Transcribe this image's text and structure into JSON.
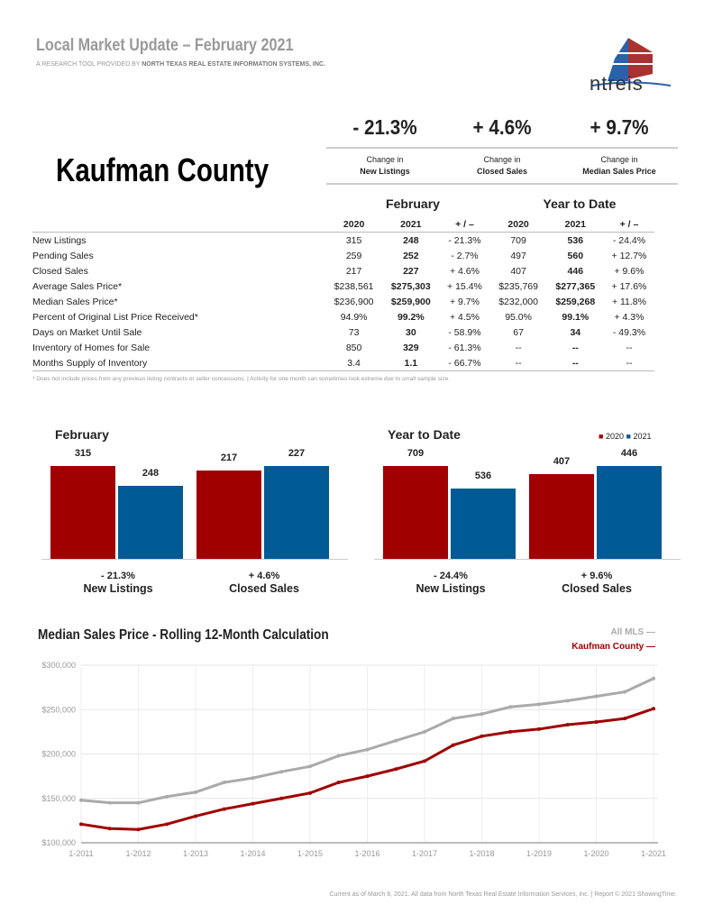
{
  "header": {
    "title": "Local Market Update – February 2021",
    "subtitle_prefix": "A RESEARCH TOOL PROVIDED BY ",
    "subtitle_org": "NORTH TEXAS REAL ESTATE INFORMATION SYSTEMS, INC.",
    "logo_text": "ntreis"
  },
  "county": "Kaufman County",
  "kpis": [
    {
      "value": "- 21.3%",
      "line1": "Change in",
      "line2": "New Listings"
    },
    {
      "value": "+ 4.6%",
      "line1": "Change in",
      "line2": "Closed Sales"
    },
    {
      "value": "+ 9.7%",
      "line1": "Change in",
      "line2": "Median Sales Price"
    }
  ],
  "table": {
    "group1": "February",
    "group2": "Year to Date",
    "cols": [
      "2020",
      "2021",
      "+ / –",
      "2020",
      "2021",
      "+ / –"
    ],
    "rows": [
      [
        "New Listings",
        "315",
        "248",
        "- 21.3%",
        "709",
        "536",
        "- 24.4%"
      ],
      [
        "Pending Sales",
        "259",
        "252",
        "- 2.7%",
        "497",
        "560",
        "+ 12.7%"
      ],
      [
        "Closed Sales",
        "217",
        "227",
        "+ 4.6%",
        "407",
        "446",
        "+ 9.6%"
      ],
      [
        "Average Sales Price*",
        "$238,561",
        "$275,303",
        "+ 15.4%",
        "$235,769",
        "$277,365",
        "+ 17.6%"
      ],
      [
        "Median Sales Price*",
        "$236,900",
        "$259,900",
        "+ 9.7%",
        "$232,000",
        "$259,268",
        "+ 11.8%"
      ],
      [
        "Percent of Original List Price Received*",
        "94.9%",
        "99.2%",
        "+ 4.5%",
        "95.0%",
        "99.1%",
        "+ 4.3%"
      ],
      [
        "Days on Market Until Sale",
        "73",
        "30",
        "- 58.9%",
        "67",
        "34",
        "- 49.3%"
      ],
      [
        "Inventory of Homes for Sale",
        "850",
        "329",
        "- 61.3%",
        "--",
        "--",
        "--"
      ],
      [
        "Months Supply of Inventory",
        "3.4",
        "1.1",
        "- 66.7%",
        "--",
        "--",
        "--"
      ]
    ]
  },
  "note": "* Does not include prices from any previous listing contracts or seller concessions. | Activity for one month can sometimes look extreme due to small sample size.",
  "chart_data": [
    {
      "type": "bar",
      "title": "February",
      "series": [
        {
          "name": "2020",
          "color": "#a00000"
        },
        {
          "name": "2021",
          "color": "#005a96"
        }
      ],
      "groups": [
        {
          "label": "New Listings",
          "change": "- 21.3%",
          "values": [
            315,
            248
          ]
        },
        {
          "label": "Closed Sales",
          "change": "+ 4.6%",
          "values": [
            217,
            227
          ]
        }
      ]
    },
    {
      "type": "bar",
      "title": "Year to Date",
      "series": [
        {
          "name": "2020",
          "color": "#a00000"
        },
        {
          "name": "2021",
          "color": "#005a96"
        }
      ],
      "groups": [
        {
          "label": "New Listings",
          "change": "- 24.4%",
          "values": [
            709,
            536
          ]
        },
        {
          "label": "Closed Sales",
          "change": "+ 9.6%",
          "values": [
            407,
            446
          ]
        }
      ]
    },
    {
      "type": "line",
      "title": "Median Sales Price - Rolling 12-Month Calculation",
      "ylim": [
        100000,
        300000
      ],
      "yticks": [
        "$300,000",
        "$250,000",
        "$200,000",
        "$150,000",
        "$100,000"
      ],
      "xticks": [
        "1-2011",
        "1-2012",
        "1-2013",
        "1-2014",
        "1-2015",
        "1-2016",
        "1-2017",
        "1-2018",
        "1-2019",
        "1-2020",
        "1-2021"
      ],
      "x": [
        "2011-01",
        "2011-07",
        "2012-01",
        "2012-07",
        "2013-01",
        "2013-07",
        "2014-01",
        "2014-07",
        "2015-01",
        "2015-07",
        "2016-01",
        "2016-07",
        "2017-01",
        "2017-07",
        "2018-01",
        "2018-07",
        "2019-01",
        "2019-07",
        "2020-01",
        "2020-07",
        "2021-01"
      ],
      "series": [
        {
          "name": "All MLS",
          "color": "#aaaaaa",
          "values": [
            148000,
            145000,
            145000,
            152000,
            157000,
            168000,
            173000,
            180000,
            186000,
            198000,
            205000,
            215000,
            225000,
            240000,
            245000,
            253000,
            256000,
            260000,
            265000,
            270000,
            285000
          ]
        },
        {
          "name": "Kaufman County",
          "color": "#a00000",
          "values": [
            121000,
            116000,
            115000,
            121000,
            130000,
            138000,
            144000,
            150000,
            156000,
            168000,
            175000,
            183000,
            192000,
            210000,
            220000,
            225000,
            228000,
            233000,
            236000,
            240000,
            251000
          ]
        }
      ]
    }
  ],
  "footer": "Current as of March 8, 2021. All data from North Texas Real Estate Information Services, Inc. | Report © 2021 ShowingTime."
}
